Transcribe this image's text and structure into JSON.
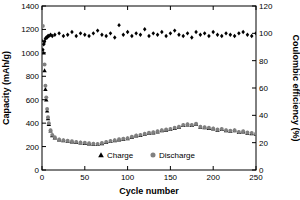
{
  "chart_data": {
    "type": "scatter",
    "x_label": "Cycle number",
    "y_label": "Capacity (mAh/g)",
    "y2_label": "Coulombic efficiency (%)",
    "x": [
      1,
      2,
      3,
      4,
      5,
      6,
      7,
      8,
      10,
      12,
      15,
      20,
      25,
      30,
      35,
      40,
      45,
      50,
      55,
      60,
      65,
      70,
      75,
      80,
      85,
      90,
      95,
      100,
      105,
      110,
      115,
      120,
      125,
      130,
      135,
      140,
      145,
      150,
      155,
      160,
      165,
      170,
      175,
      180,
      185,
      190,
      195,
      200,
      205,
      210,
      215,
      220,
      225,
      230,
      235,
      240,
      245,
      250
    ],
    "series": [
      {
        "name": "Charge",
        "color": "#000000",
        "marker": "triangle",
        "values": [
          1100,
          1000,
          850,
          690,
          600,
          505,
          440,
          390,
          335,
          295,
          275,
          258,
          252,
          247,
          242,
          237,
          232,
          229,
          225,
          222,
          219,
          227,
          237,
          245,
          252,
          259,
          265,
          269,
          282,
          292,
          297,
          307,
          315,
          319,
          327,
          337,
          342,
          347,
          357,
          367,
          382,
          387,
          382,
          392,
          367,
          362,
          357,
          352,
          342,
          347,
          337,
          332,
          337,
          322,
          327,
          317,
          312,
          307
        ]
      },
      {
        "name": "Discharge",
        "color": "#808080",
        "marker": "circle",
        "values": [
          1230,
          1080,
          900,
          720,
          620,
          520,
          450,
          400,
          340,
          300,
          280,
          260,
          255,
          250,
          245,
          240,
          235,
          232,
          228,
          225,
          222,
          230,
          240,
          248,
          255,
          262,
          268,
          272,
          285,
          295,
          300,
          310,
          318,
          322,
          330,
          340,
          345,
          350,
          360,
          370,
          385,
          390,
          385,
          395,
          370,
          365,
          360,
          355,
          345,
          350,
          340,
          335,
          340,
          325,
          330,
          320,
          315,
          310
        ]
      },
      {
        "color": "#000000",
        "marker": "diamond",
        "axis": "y2",
        "values": [
          88,
          92,
          94,
          96,
          97,
          97,
          98,
          98,
          99,
          98,
          99,
          100,
          98,
          99,
          101,
          98,
          100,
          99,
          98,
          100,
          102,
          99,
          98,
          100,
          97,
          106,
          99,
          101,
          98,
          100,
          99,
          103,
          98,
          100,
          99,
          101,
          98,
          100,
          102,
          99,
          98,
          100,
          97,
          101,
          99,
          100,
          98,
          101,
          99,
          98,
          100,
          99,
          98,
          100,
          101,
          99,
          98,
          100
        ]
      }
    ],
    "xlim": [
      0,
      250
    ],
    "xticks": [
      0,
      50,
      100,
      150,
      200,
      250
    ],
    "ylim": [
      0,
      1400
    ],
    "yticks": [
      0,
      200,
      400,
      600,
      800,
      1000,
      1200,
      1400
    ],
    "y2lim": [
      0,
      120
    ],
    "y2ticks": [
      0,
      20,
      40,
      60,
      80,
      100,
      120
    ],
    "legend": "bottom"
  }
}
